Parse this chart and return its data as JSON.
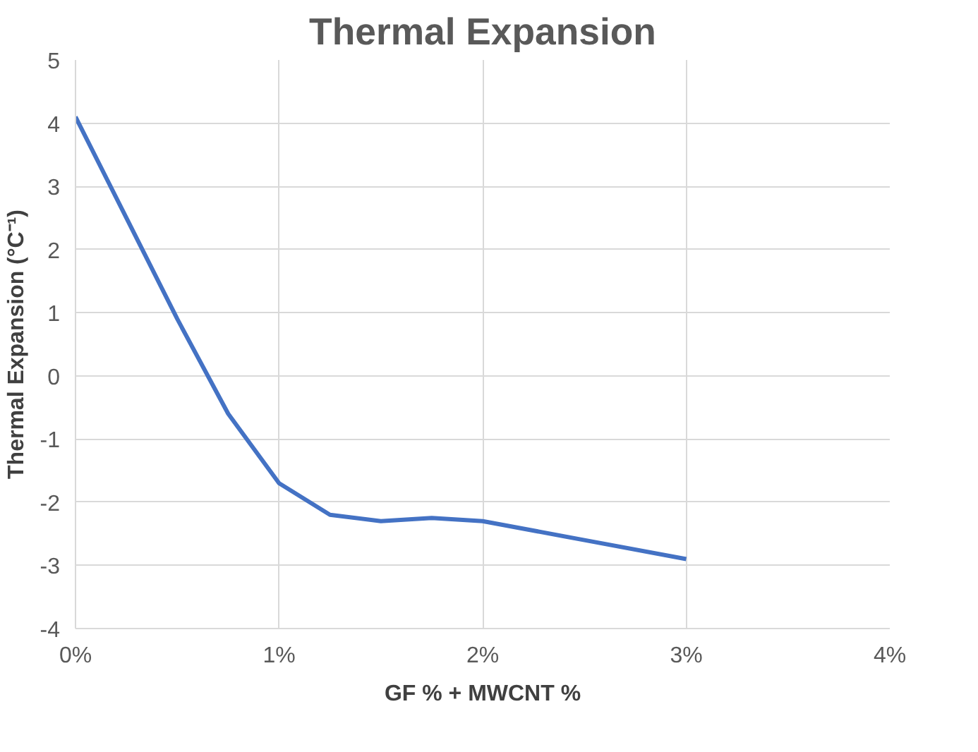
{
  "chart_data": {
    "type": "line",
    "title": "Thermal Expansion",
    "xlabel": "GF % + MWCNT %",
    "ylabel": "Thermal Expansion (°C⁻¹)",
    "x": [
      0,
      0.25,
      0.5,
      0.75,
      1,
      1.25,
      1.5,
      1.75,
      2,
      2.5,
      3
    ],
    "series": [
      {
        "color": "#4472c4",
        "values": [
          4.1,
          2.5,
          0.9,
          -0.6,
          -1.7,
          -2.2,
          -2.3,
          -2.25,
          -2.3,
          -2.6,
          -2.9
        ]
      }
    ],
    "xlim": [
      0,
      4
    ],
    "xticks": [
      {
        "value": 0,
        "label": "0%"
      },
      {
        "value": 1,
        "label": "1%"
      },
      {
        "value": 2,
        "label": "2%"
      },
      {
        "value": 3,
        "label": "3%"
      },
      {
        "value": 4,
        "label": "4%"
      }
    ],
    "ylim": [
      -4,
      5
    ],
    "yticks": [
      -4,
      -3,
      -2,
      -1,
      0,
      1,
      2,
      3,
      4,
      5
    ],
    "grid": true,
    "marker": "none",
    "line_style": "solid"
  }
}
